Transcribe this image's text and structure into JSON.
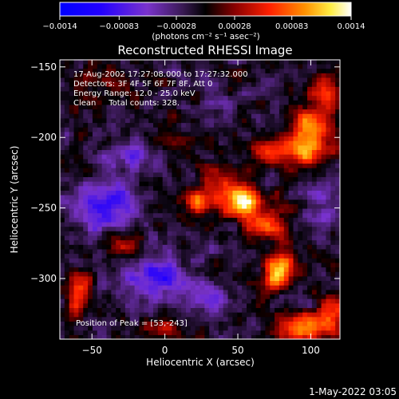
{
  "chart_data": {
    "type": "heatmap",
    "title": "Reconstructed RHESSI Image",
    "xlabel": "Heliocentric X (arcsec)",
    "ylabel": "Heliocentric Y (arcsec)",
    "xlim": [
      -72,
      120
    ],
    "ylim": [
      -343,
      -145
    ],
    "xticks": [
      -50,
      0,
      50,
      100
    ],
    "yticks": [
      -150,
      -200,
      -250,
      -300
    ],
    "x_tick_labels": [
      "−50",
      "0",
      "50",
      "100"
    ],
    "y_tick_labels": [
      "−150",
      "−200",
      "−250",
      "−300"
    ],
    "colorbar": {
      "range": [
        -0.0014,
        0.0014
      ],
      "tick_values": [
        -0.0014,
        -0.00083,
        -0.00028,
        0.00028,
        0.00083,
        0.0014
      ],
      "tick_labels": [
        "−0.0014",
        "−0.00083",
        "−0.00028",
        "0.00028",
        "0.00083",
        "0.0014"
      ],
      "unit_label": "(photons cm⁻² s⁻¹ asec⁻²)"
    },
    "annotations": [
      "17-Aug-2002 17:27:08.000 to 17:27:32.000",
      "Detectors: 3F 4F 5F 6F 7F 8F, Att 0",
      "Energy Range: 12.0 - 25.0 keV",
      "Clean     Total counts: 328."
    ],
    "peak_label": "Position of Peak = [53,-243]",
    "peak": {
      "x": 53,
      "y": -243
    },
    "blobs": [
      {
        "x": 53,
        "y": -245,
        "amp": 0.0014,
        "sx": 10,
        "sy": 8
      },
      {
        "x": 25,
        "y": -245,
        "amp": 0.00085,
        "sx": 10,
        "sy": 6
      },
      {
        "x": 70,
        "y": -262,
        "amp": 0.0008,
        "sx": 10,
        "sy": 7
      },
      {
        "x": 35,
        "y": -228,
        "amp": 0.0005,
        "sx": 9,
        "sy": 6
      },
      {
        "x": 80,
        "y": -290,
        "amp": 0.00115,
        "sx": 7,
        "sy": 7
      },
      {
        "x": 75,
        "y": -300,
        "amp": 0.0008,
        "sx": 6,
        "sy": 6
      },
      {
        "x": 95,
        "y": -208,
        "amp": 0.00115,
        "sx": 14,
        "sy": 8
      },
      {
        "x": 100,
        "y": -190,
        "amp": 0.0009,
        "sx": 8,
        "sy": 8
      },
      {
        "x": 110,
        "y": -170,
        "amp": 0.0008,
        "sx": 7,
        "sy": 9
      },
      {
        "x": 70,
        "y": -210,
        "amp": 0.0006,
        "sx": 8,
        "sy": 6
      },
      {
        "x": 95,
        "y": -335,
        "amp": 0.00115,
        "sx": 12,
        "sy": 7
      },
      {
        "x": 115,
        "y": -325,
        "amp": 0.0007,
        "sx": 6,
        "sy": 8
      },
      {
        "x": -60,
        "y": -310,
        "amp": 0.0007,
        "sx": 7,
        "sy": 10
      },
      {
        "x": -30,
        "y": -275,
        "amp": 0.0006,
        "sx": 9,
        "sy": 6
      },
      {
        "x": -45,
        "y": -160,
        "amp": 0.0005,
        "sx": 12,
        "sy": 7
      },
      {
        "x": 0,
        "y": -335,
        "amp": 0.0005,
        "sx": 10,
        "sy": 6
      },
      {
        "x": -10,
        "y": -205,
        "amp": 0.0004,
        "sx": 8,
        "sy": 6
      },
      {
        "x": -40,
        "y": -248,
        "amp": -0.0008,
        "sx": 14,
        "sy": 14
      },
      {
        "x": -5,
        "y": -300,
        "amp": -0.0009,
        "sx": 14,
        "sy": 10
      },
      {
        "x": -20,
        "y": -210,
        "amp": -0.0006,
        "sx": 12,
        "sy": 8
      },
      {
        "x": 30,
        "y": -315,
        "amp": -0.0005,
        "sx": 10,
        "sy": 8
      },
      {
        "x": 110,
        "y": -250,
        "amp": -0.0004,
        "sx": 8,
        "sy": 10
      },
      {
        "x": 40,
        "y": -175,
        "amp": -0.0003,
        "sx": 10,
        "sy": 6
      }
    ]
  },
  "footer_date": "1-May-2022 03:05"
}
